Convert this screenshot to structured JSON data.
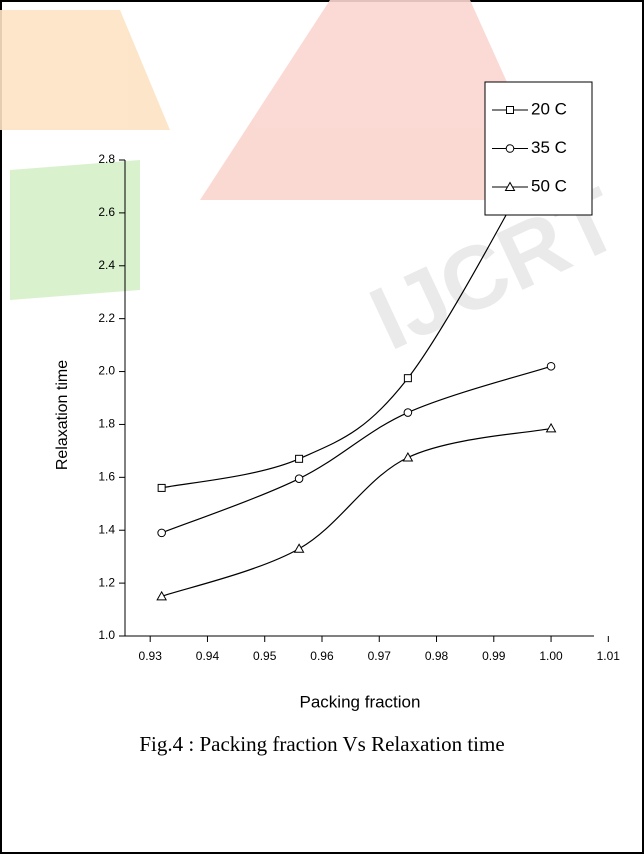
{
  "chart_data": {
    "type": "line",
    "x_label": "Packing fraction",
    "y_label": "Relaxation time",
    "caption": "Fig.4 : Packing fraction Vs Relaxation time",
    "xlim": [
      0.9256,
      1.0075
    ],
    "ylim": [
      1.0,
      2.8
    ],
    "xticks": [
      0.93,
      0.94,
      0.95,
      0.96,
      0.97,
      0.98,
      0.99,
      {
        "value": 1.0,
        "label": "1.00"
      },
      1.01
    ],
    "yticks": [
      {
        "value": 1.0,
        "label": "1.0"
      },
      1.2,
      1.4,
      1.6,
      1.8,
      {
        "value": 2.0,
        "label": "2.0"
      },
      2.2,
      2.4,
      2.6,
      2.8
    ],
    "x": [
      0.932,
      0.956,
      0.975,
      1.0
    ],
    "series": [
      {
        "name": "20 C",
        "marker": "square",
        "color": "#000000",
        "values": [
          1.56,
          1.67,
          1.975,
          2.9
        ]
      },
      {
        "name": "35 C",
        "marker": "circle",
        "color": "#000000",
        "values": [
          1.39,
          1.595,
          1.845,
          2.02
        ]
      },
      {
        "name": "50 C",
        "marker": "triangle",
        "color": "#000000",
        "values": [
          1.15,
          1.33,
          1.675,
          1.785
        ]
      }
    ]
  }
}
